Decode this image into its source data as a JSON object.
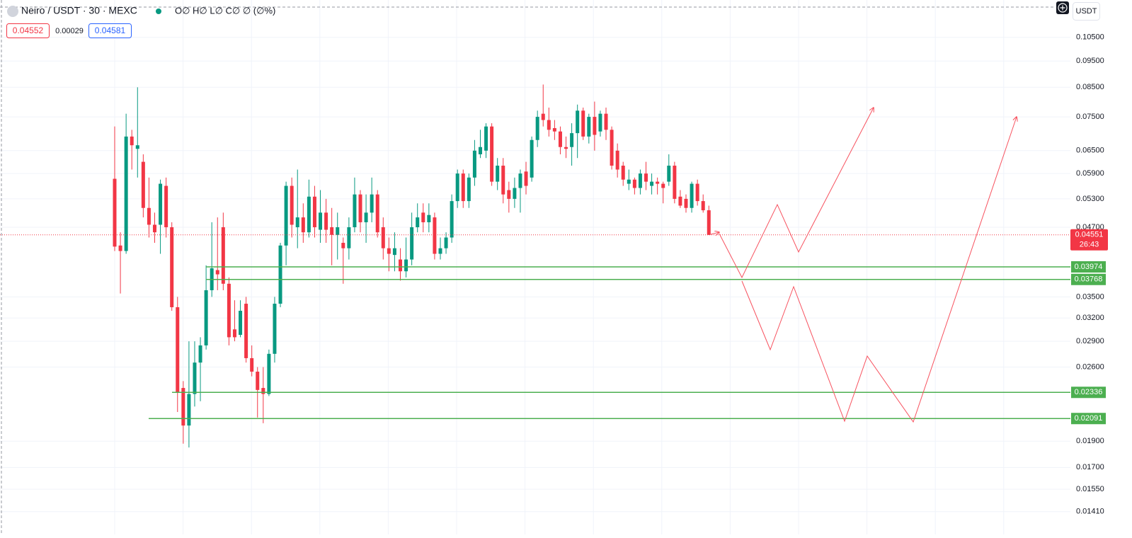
{
  "chart_data": {
    "type": "candlestick",
    "title": "Neiro / USDT · 30 · MEXC",
    "ohlc_legend": "O∅ H∅ L∅ C∅ ∅ (∅%)",
    "quote": {
      "bid": "0.04552",
      "spread": "0.00029",
      "ask": "0.04581"
    },
    "currency": "USDT",
    "log_scale": true,
    "grid": true,
    "up_color": "#089981",
    "down_color": "#f23645",
    "level_color": "#4caf50",
    "ylim": [
      0.0128,
      0.123
    ],
    "yticks": [
      {
        "value": 0.105,
        "label": "0.10500"
      },
      {
        "value": 0.095,
        "label": "0.09500"
      },
      {
        "value": 0.085,
        "label": "0.08500"
      },
      {
        "value": 0.075,
        "label": "0.07500"
      },
      {
        "value": 0.065,
        "label": "0.06500"
      },
      {
        "value": 0.059,
        "label": "0.05900"
      },
      {
        "value": 0.053,
        "label": "0.05300"
      },
      {
        "value": 0.047,
        "label": "0.04700"
      },
      {
        "value": 0.035,
        "label": "0.03500"
      },
      {
        "value": 0.032,
        "label": "0.03200"
      },
      {
        "value": 0.029,
        "label": "0.02900"
      },
      {
        "value": 0.026,
        "label": "0.02600"
      },
      {
        "value": 0.019,
        "label": "0.01900"
      },
      {
        "value": 0.017,
        "label": "0.01700"
      },
      {
        "value": 0.0155,
        "label": "0.01550"
      },
      {
        "value": 0.0141,
        "label": "0.01410"
      }
    ],
    "levels": [
      {
        "value": 0.03974,
        "label": "0.03974"
      },
      {
        "value": 0.03768,
        "label": "0.03768"
      },
      {
        "value": 0.02336,
        "label": "0.02336"
      },
      {
        "value": 0.02091,
        "label": "0.02091"
      }
    ],
    "last_price": {
      "value": 0.04551,
      "label": "0.04551"
    },
    "countdown": "26:43",
    "open": [
      0.0577,
      0.0435,
      0.0425,
      0.069,
      0.0655,
      0.062,
      0.051,
      0.0475,
      0.0475,
      0.056,
      0.047,
      0.0335,
      0.0238,
      0.0203,
      0.0232,
      0.0265,
      0.0285,
      0.036,
      0.0392,
      0.047,
      0.037,
      0.0305,
      0.0298,
      0.034,
      0.027,
      0.0255,
      0.0238,
      0.0232,
      0.0275,
      0.034,
      0.0435,
      0.056,
      0.047,
      0.049,
      0.046,
      0.0535,
      0.0465,
      0.05,
      0.047,
      0.0455,
      0.044,
      0.043,
      0.047,
      0.054,
      0.048,
      0.05,
      0.054,
      0.047,
      0.043,
      0.0418,
      0.041,
      0.039,
      0.041,
      0.047,
      0.05,
      0.048,
      0.049,
      0.042,
      0.043,
      0.045,
      0.0525,
      0.059,
      0.0525,
      0.058,
      0.064,
      0.065,
      0.072,
      0.057,
      0.061,
      0.055,
      0.053,
      0.0555,
      0.0595,
      0.058,
      0.068,
      0.076,
      0.074,
      0.0715,
      0.0705,
      0.066,
      0.066,
      0.07,
      0.077,
      0.069,
      0.075,
      0.0705,
      0.076,
      0.071,
      0.065,
      0.061,
      0.0565,
      0.0575,
      0.0555,
      0.059,
      0.056,
      0.057,
      0.0565,
      0.057,
      0.061,
      0.0535,
      0.053,
      0.051,
      0.0565,
      0.0525,
      0.0505
    ],
    "high": [
      0.072,
      0.046,
      0.076,
      0.071,
      0.085,
      0.064,
      0.058,
      0.05,
      0.0575,
      0.058,
      0.048,
      0.035,
      0.0245,
      0.029,
      0.029,
      0.0295,
      0.04,
      0.048,
      0.049,
      0.05,
      0.038,
      0.0345,
      0.0345,
      0.035,
      0.0285,
      0.026,
      0.026,
      0.028,
      0.035,
      0.044,
      0.057,
      0.058,
      0.06,
      0.052,
      0.0575,
      0.056,
      0.055,
      0.053,
      0.051,
      0.05,
      0.045,
      0.049,
      0.058,
      0.055,
      0.054,
      0.058,
      0.055,
      0.049,
      0.045,
      0.046,
      0.043,
      0.045,
      0.05,
      0.052,
      0.052,
      0.052,
      0.05,
      0.045,
      0.046,
      0.054,
      0.06,
      0.06,
      0.059,
      0.068,
      0.071,
      0.073,
      0.073,
      0.063,
      0.063,
      0.057,
      0.058,
      0.06,
      0.062,
      0.069,
      0.077,
      0.086,
      0.078,
      0.074,
      0.072,
      0.069,
      0.073,
      0.079,
      0.078,
      0.076,
      0.08,
      0.077,
      0.078,
      0.072,
      0.067,
      0.062,
      0.06,
      0.058,
      0.06,
      0.062,
      0.059,
      0.058,
      0.057,
      0.064,
      0.062,
      0.055,
      0.054,
      0.057,
      0.0575,
      0.054,
      0.0515
    ],
    "low": [
      0.0425,
      0.0355,
      0.042,
      0.06,
      0.058,
      0.049,
      0.045,
      0.044,
      0.042,
      0.045,
      0.033,
      0.0215,
      0.0188,
      0.0185,
      0.022,
      0.0225,
      0.028,
      0.035,
      0.036,
      0.036,
      0.0285,
      0.029,
      0.0295,
      0.0265,
      0.025,
      0.021,
      0.0205,
      0.023,
      0.0265,
      0.0335,
      0.04,
      0.045,
      0.043,
      0.044,
      0.045,
      0.045,
      0.044,
      0.044,
      0.04,
      0.041,
      0.037,
      0.041,
      0.046,
      0.046,
      0.044,
      0.048,
      0.045,
      0.041,
      0.039,
      0.039,
      0.0375,
      0.038,
      0.04,
      0.046,
      0.046,
      0.046,
      0.041,
      0.041,
      0.042,
      0.044,
      0.051,
      0.051,
      0.051,
      0.056,
      0.063,
      0.063,
      0.056,
      0.055,
      0.052,
      0.05,
      0.051,
      0.05,
      0.054,
      0.057,
      0.066,
      0.072,
      0.069,
      0.068,
      0.064,
      0.063,
      0.061,
      0.063,
      0.068,
      0.067,
      0.065,
      0.069,
      0.068,
      0.06,
      0.058,
      0.056,
      0.055,
      0.054,
      0.054,
      0.055,
      0.054,
      0.054,
      0.052,
      0.056,
      0.052,
      0.051,
      0.05,
      0.05,
      0.0515,
      0.05,
      0.0455
    ],
    "close": [
      0.0433,
      0.0425,
      0.069,
      0.0665,
      0.0665,
      0.051,
      0.0475,
      0.046,
      0.0565,
      0.047,
      0.0335,
      0.0234,
      0.0203,
      0.0232,
      0.0265,
      0.0285,
      0.036,
      0.0395,
      0.0385,
      0.037,
      0.0295,
      0.0295,
      0.033,
      0.027,
      0.0255,
      0.0236,
      0.0232,
      0.0275,
      0.034,
      0.0435,
      0.056,
      0.0475,
      0.049,
      0.046,
      0.0535,
      0.047,
      0.05,
      0.0465,
      0.0455,
      0.047,
      0.043,
      0.047,
      0.054,
      0.048,
      0.05,
      0.054,
      0.046,
      0.043,
      0.042,
      0.043,
      0.039,
      0.041,
      0.047,
      0.049,
      0.048,
      0.0495,
      0.042,
      0.043,
      0.045,
      0.0525,
      0.059,
      0.0525,
      0.058,
      0.065,
      0.066,
      0.072,
      0.057,
      0.061,
      0.054,
      0.053,
      0.0555,
      0.059,
      0.056,
      0.068,
      0.075,
      0.074,
      0.071,
      0.0705,
      0.066,
      0.0655,
      0.07,
      0.077,
      0.069,
      0.075,
      0.0695,
      0.076,
      0.071,
      0.061,
      0.06,
      0.0575,
      0.0575,
      0.0555,
      0.059,
      0.057,
      0.057,
      0.0565,
      0.0555,
      0.061,
      0.053,
      0.0515,
      0.051,
      0.0565,
      0.0525,
      0.0505,
      0.0455
    ]
  }
}
